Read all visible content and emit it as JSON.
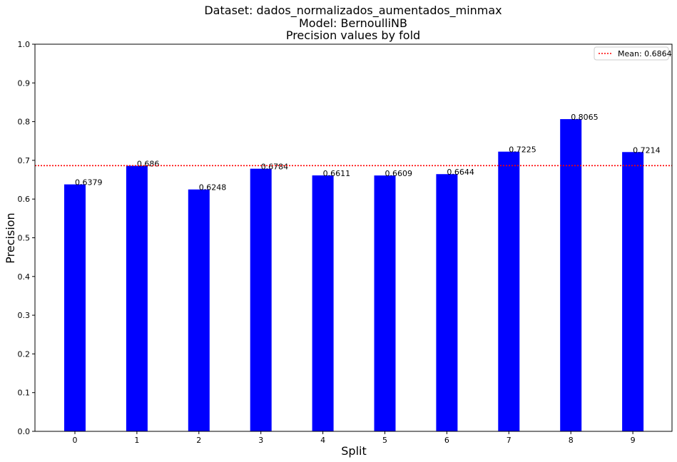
{
  "chart_data": {
    "type": "bar",
    "title_lines": [
      "Dataset: dados_normalizados_aumentados_minmax",
      "Model: BernoulliNB",
      "Precision values by fold"
    ],
    "xlabel": "Split",
    "ylabel": "Precision",
    "categories": [
      "0",
      "1",
      "2",
      "3",
      "4",
      "5",
      "6",
      "7",
      "8",
      "9"
    ],
    "values": [
      0.6379,
      0.686,
      0.6248,
      0.6784,
      0.6611,
      0.6609,
      0.6644,
      0.7225,
      0.8065,
      0.7214
    ],
    "value_labels": [
      "0.6379",
      "0.686",
      "0.6248",
      "0.6784",
      "0.6611",
      "0.6609",
      "0.6644",
      "0.7225",
      "0.8065",
      "0.7214"
    ],
    "ylim": [
      0,
      1.0
    ],
    "yticks": [
      "0.0",
      "0.1",
      "0.2",
      "0.3",
      "0.4",
      "0.5",
      "0.6",
      "0.7",
      "0.8",
      "0.9",
      "1.0"
    ],
    "mean": 0.6864,
    "legend": {
      "label": "Mean: 0.6864",
      "placement": "top-right"
    },
    "colors": {
      "bar": "#0000ff",
      "mean_line": "#ff0000"
    },
    "grid": false
  }
}
